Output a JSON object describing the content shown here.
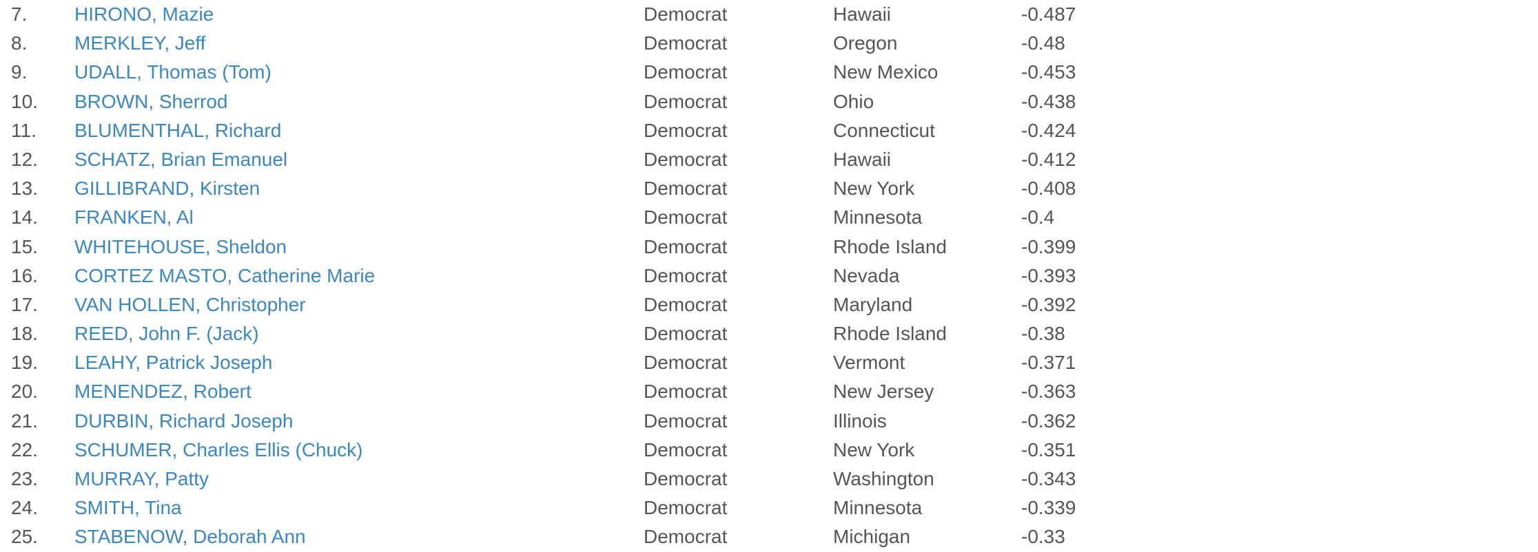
{
  "senators": [
    {
      "rank": "7.",
      "name": "HIRONO, Mazie",
      "party": "Democrat",
      "state": "Hawaii",
      "score": "-0.487"
    },
    {
      "rank": "8.",
      "name": "MERKLEY, Jeff",
      "party": "Democrat",
      "state": "Oregon",
      "score": "-0.48"
    },
    {
      "rank": "9.",
      "name": "UDALL, Thomas (Tom)",
      "party": "Democrat",
      "state": "New Mexico",
      "score": "-0.453"
    },
    {
      "rank": "10.",
      "name": "BROWN, Sherrod",
      "party": "Democrat",
      "state": "Ohio",
      "score": "-0.438"
    },
    {
      "rank": "11.",
      "name": "BLUMENTHAL, Richard",
      "party": "Democrat",
      "state": "Connecticut",
      "score": "-0.424"
    },
    {
      "rank": "12.",
      "name": "SCHATZ, Brian Emanuel",
      "party": "Democrat",
      "state": "Hawaii",
      "score": "-0.412"
    },
    {
      "rank": "13.",
      "name": "GILLIBRAND, Kirsten",
      "party": "Democrat",
      "state": "New York",
      "score": "-0.408"
    },
    {
      "rank": "14.",
      "name": "FRANKEN, Al",
      "party": "Democrat",
      "state": "Minnesota",
      "score": "-0.4"
    },
    {
      "rank": "15.",
      "name": "WHITEHOUSE, Sheldon",
      "party": "Democrat",
      "state": "Rhode Island",
      "score": "-0.399"
    },
    {
      "rank": "16.",
      "name": "CORTEZ MASTO, Catherine Marie",
      "party": "Democrat",
      "state": "Nevada",
      "score": "-0.393"
    },
    {
      "rank": "17.",
      "name": "VAN HOLLEN, Christopher",
      "party": "Democrat",
      "state": "Maryland",
      "score": "-0.392"
    },
    {
      "rank": "18.",
      "name": "REED, John F. (Jack)",
      "party": "Democrat",
      "state": "Rhode Island",
      "score": "-0.38"
    },
    {
      "rank": "19.",
      "name": "LEAHY, Patrick Joseph",
      "party": "Democrat",
      "state": "Vermont",
      "score": "-0.371"
    },
    {
      "rank": "20.",
      "name": "MENENDEZ, Robert",
      "party": "Democrat",
      "state": "New Jersey",
      "score": "-0.363"
    },
    {
      "rank": "21.",
      "name": "DURBIN, Richard Joseph",
      "party": "Democrat",
      "state": "Illinois",
      "score": "-0.362"
    },
    {
      "rank": "22.",
      "name": "SCHUMER, Charles Ellis (Chuck)",
      "party": "Democrat",
      "state": "New York",
      "score": "-0.351"
    },
    {
      "rank": "23.",
      "name": "MURRAY, Patty",
      "party": "Democrat",
      "state": "Washington",
      "score": "-0.343"
    },
    {
      "rank": "24.",
      "name": "SMITH, Tina",
      "party": "Democrat",
      "state": "Minnesota",
      "score": "-0.339"
    },
    {
      "rank": "25.",
      "name": "STABENOW, Deborah Ann",
      "party": "Democrat",
      "state": "Michigan",
      "score": "-0.33"
    }
  ],
  "colors": {
    "link": "#3a87c4",
    "text": "#555555",
    "background": "#ffffff"
  }
}
